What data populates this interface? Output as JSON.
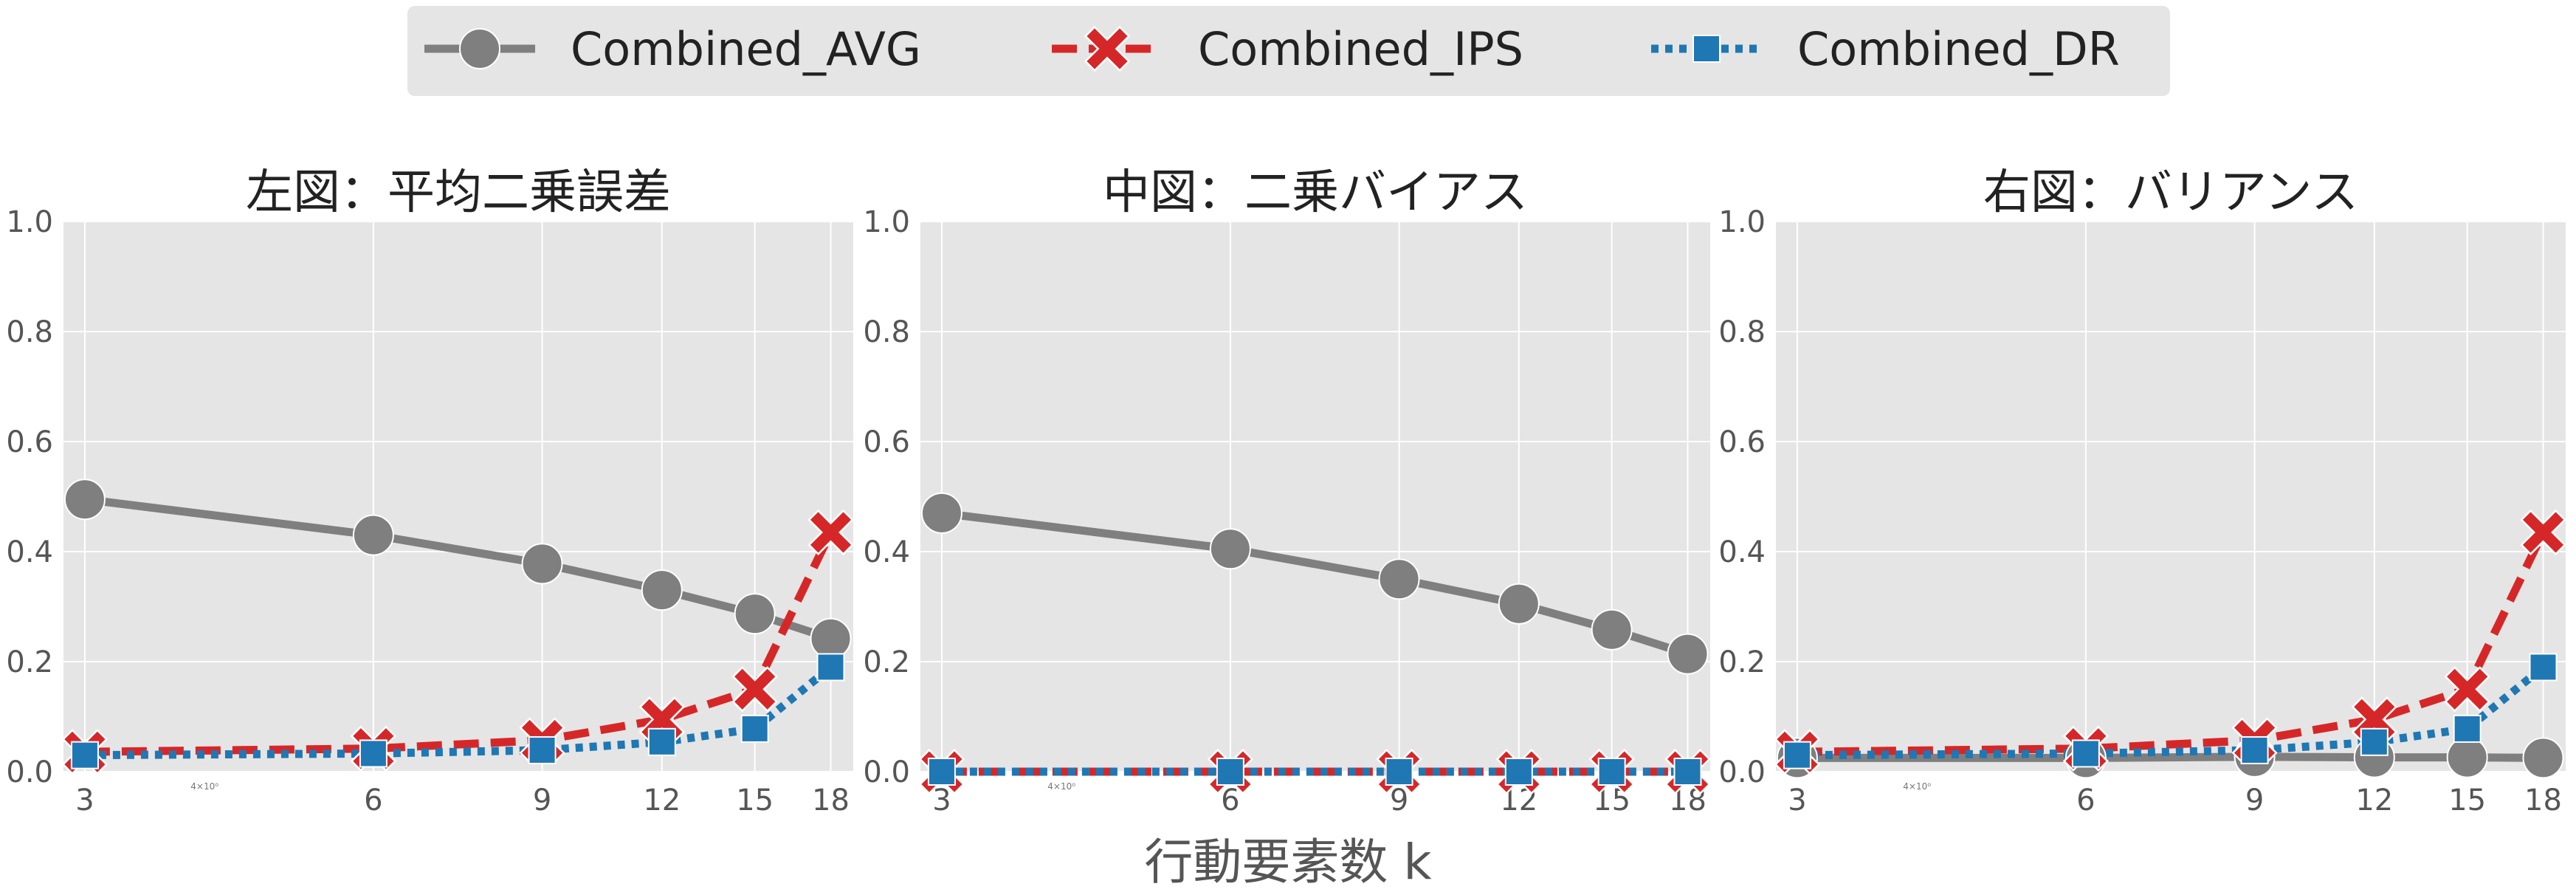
{
  "colors": {
    "avg": "#7f7f7f",
    "ips": "#d62728",
    "dr": "#1f77b4",
    "panel_bg": "#e5e5e5",
    "grid": "#ffffff",
    "legend_bg": "#e5e5e5"
  },
  "legend": {
    "placement": "top-center",
    "entries": [
      {
        "label": "Combined_AVG",
        "marker": "circle-icon",
        "linestyle": "solid"
      },
      {
        "label": "Combined_IPS",
        "marker": "x-icon",
        "linestyle": "dashed"
      },
      {
        "label": "Combined_DR",
        "marker": "square-icon",
        "linestyle": "dotted"
      }
    ]
  },
  "xlabel": "行動要素数 k",
  "chart_data": [
    {
      "type": "line",
      "title": "左図：平均二乗誤差",
      "x": [
        3,
        6,
        9,
        12,
        15,
        18
      ],
      "x_scale": "log",
      "xlim": [
        2.85,
        19
      ],
      "xticks": [
        "3",
        "6",
        "9",
        "12",
        "15",
        "18"
      ],
      "minor_tick_label": "4×10⁰",
      "ylim": [
        0,
        1.0
      ],
      "yticks": [
        "0.0",
        "0.2",
        "0.4",
        "0.6",
        "0.8",
        "1.0"
      ],
      "grid": true,
      "series": [
        {
          "name": "Combined_AVG",
          "values": [
            0.495,
            0.43,
            0.378,
            0.33,
            0.287,
            0.242
          ]
        },
        {
          "name": "Combined_IPS",
          "values": [
            0.036,
            0.042,
            0.057,
            0.095,
            0.15,
            0.435
          ]
        },
        {
          "name": "Combined_DR",
          "values": [
            0.03,
            0.033,
            0.039,
            0.054,
            0.078,
            0.19
          ]
        }
      ]
    },
    {
      "type": "line",
      "title": "中図：二乗バイアス",
      "x": [
        3,
        6,
        9,
        12,
        15,
        18
      ],
      "x_scale": "log",
      "xlim": [
        2.85,
        19
      ],
      "xticks": [
        "3",
        "6",
        "9",
        "12",
        "15",
        "18"
      ],
      "minor_tick_label": "4×10⁰",
      "ylim": [
        0,
        1.0
      ],
      "yticks": [
        "0.0",
        "0.2",
        "0.4",
        "0.6",
        "0.8",
        "1.0"
      ],
      "grid": true,
      "series": [
        {
          "name": "Combined_AVG",
          "values": [
            0.47,
            0.405,
            0.35,
            0.305,
            0.258,
            0.214
          ]
        },
        {
          "name": "Combined_IPS",
          "values": [
            0.0,
            0.0,
            0.0,
            0.0,
            0.0,
            0.0
          ]
        },
        {
          "name": "Combined_DR",
          "values": [
            0.0,
            0.0,
            0.0,
            0.0,
            0.0,
            0.0
          ]
        }
      ]
    },
    {
      "type": "line",
      "title": "右図：バリアンス",
      "x": [
        3,
        6,
        9,
        12,
        15,
        18
      ],
      "x_scale": "log",
      "xlim": [
        2.85,
        19
      ],
      "xticks": [
        "3",
        "6",
        "9",
        "12",
        "15",
        "18"
      ],
      "minor_tick_label": "4×10⁰",
      "ylim": [
        0,
        1.0
      ],
      "yticks": [
        "0.0",
        "0.2",
        "0.4",
        "0.6",
        "0.8",
        "1.0"
      ],
      "grid": true,
      "series": [
        {
          "name": "Combined_AVG",
          "values": [
            0.025,
            0.025,
            0.027,
            0.026,
            0.026,
            0.025
          ]
        },
        {
          "name": "Combined_IPS",
          "values": [
            0.036,
            0.042,
            0.057,
            0.095,
            0.15,
            0.435
          ]
        },
        {
          "name": "Combined_DR",
          "values": [
            0.03,
            0.033,
            0.039,
            0.054,
            0.078,
            0.19
          ]
        }
      ]
    }
  ]
}
